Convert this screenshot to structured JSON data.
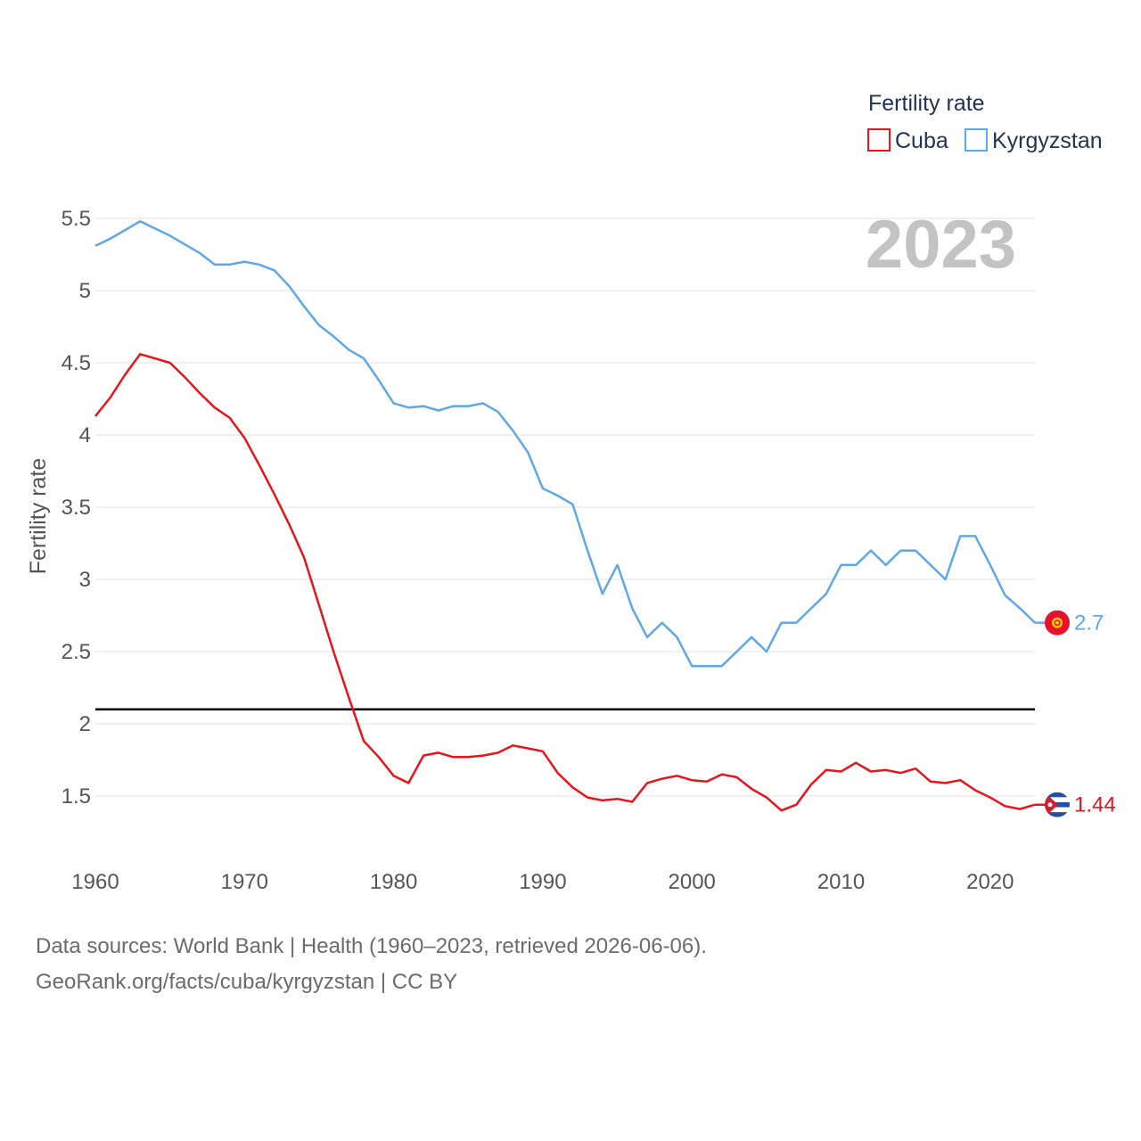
{
  "chart_data": {
    "type": "line",
    "title": "",
    "ylabel": "Fertility rate",
    "xlabel": "",
    "legend_title": "Fertility rate",
    "legend_position": "top-right",
    "year_label": "2023",
    "xlim": [
      1960,
      2023
    ],
    "ylim": [
      1.0,
      5.6
    ],
    "x_ticks": [
      1960,
      1970,
      1980,
      1990,
      2000,
      2010,
      2020
    ],
    "y_ticks": [
      {
        "value": 1.5,
        "label": "1.5"
      },
      {
        "value": 2,
        "label": "2"
      },
      {
        "value": 2.5,
        "label": "2.5"
      },
      {
        "value": 3,
        "label": "3"
      },
      {
        "value": 3.5,
        "label": "3.5"
      },
      {
        "value": 4,
        "label": "4"
      },
      {
        "value": 4.5,
        "label": "4.5"
      },
      {
        "value": 5,
        "label": "5"
      },
      {
        "value": 5.5,
        "label": "5.5"
      }
    ],
    "reference_line": {
      "value": 2.1,
      "color": "#000000"
    },
    "grid": true,
    "x": [
      1960,
      1961,
      1962,
      1963,
      1964,
      1965,
      1966,
      1967,
      1968,
      1969,
      1970,
      1971,
      1972,
      1973,
      1974,
      1975,
      1976,
      1977,
      1978,
      1979,
      1980,
      1981,
      1982,
      1983,
      1984,
      1985,
      1986,
      1987,
      1988,
      1989,
      1990,
      1991,
      1992,
      1993,
      1994,
      1995,
      1996,
      1997,
      1998,
      1999,
      2000,
      2001,
      2002,
      2003,
      2004,
      2005,
      2006,
      2007,
      2008,
      2009,
      2010,
      2011,
      2012,
      2013,
      2014,
      2015,
      2016,
      2017,
      2018,
      2019,
      2020,
      2021,
      2022,
      2023
    ],
    "series": [
      {
        "name": "Cuba",
        "color": "#e8141c",
        "end_label": "1.44",
        "flag": "cuba",
        "values": [
          4.13,
          4.26,
          4.42,
          4.56,
          4.53,
          4.5,
          4.4,
          4.29,
          4.19,
          4.12,
          3.98,
          3.79,
          3.59,
          3.38,
          3.15,
          2.82,
          2.49,
          2.18,
          1.88,
          1.77,
          1.64,
          1.59,
          1.78,
          1.8,
          1.77,
          1.77,
          1.78,
          1.8,
          1.85,
          1.83,
          1.81,
          1.66,
          1.56,
          1.49,
          1.47,
          1.48,
          1.46,
          1.59,
          1.62,
          1.64,
          1.61,
          1.6,
          1.65,
          1.63,
          1.55,
          1.49,
          1.4,
          1.44,
          1.58,
          1.68,
          1.67,
          1.73,
          1.67,
          1.68,
          1.66,
          1.69,
          1.6,
          1.59,
          1.61,
          1.54,
          1.49,
          1.43,
          1.41,
          1.44
        ]
      },
      {
        "name": "Kyrgyzstan",
        "color": "#5fa8e8",
        "end_label": "2.7",
        "flag": "kyrgyzstan",
        "values": [
          5.31,
          5.36,
          5.42,
          5.48,
          5.43,
          5.38,
          5.32,
          5.26,
          5.18,
          5.18,
          5.2,
          5.18,
          5.14,
          5.03,
          4.89,
          4.76,
          4.68,
          4.59,
          4.53,
          4.38,
          4.22,
          4.19,
          4.2,
          4.17,
          4.2,
          4.2,
          4.22,
          4.16,
          4.03,
          3.88,
          3.63,
          3.58,
          3.52,
          3.2,
          2.9,
          3.1,
          2.8,
          2.6,
          2.7,
          2.6,
          2.4,
          2.4,
          2.4,
          2.5,
          2.6,
          2.5,
          2.7,
          2.7,
          2.8,
          2.9,
          3.1,
          3.1,
          3.2,
          3.1,
          3.2,
          3.2,
          3.1,
          3.0,
          3.3,
          3.3,
          3.1,
          2.89,
          2.8,
          2.7
        ]
      }
    ]
  },
  "footer": {
    "line1": "Data sources: World Bank | Health (1960–2023, retrieved 2026-06-06).",
    "line2": "GeoRank.org/facts/cuba/kyrgyzstan | CC BY"
  }
}
